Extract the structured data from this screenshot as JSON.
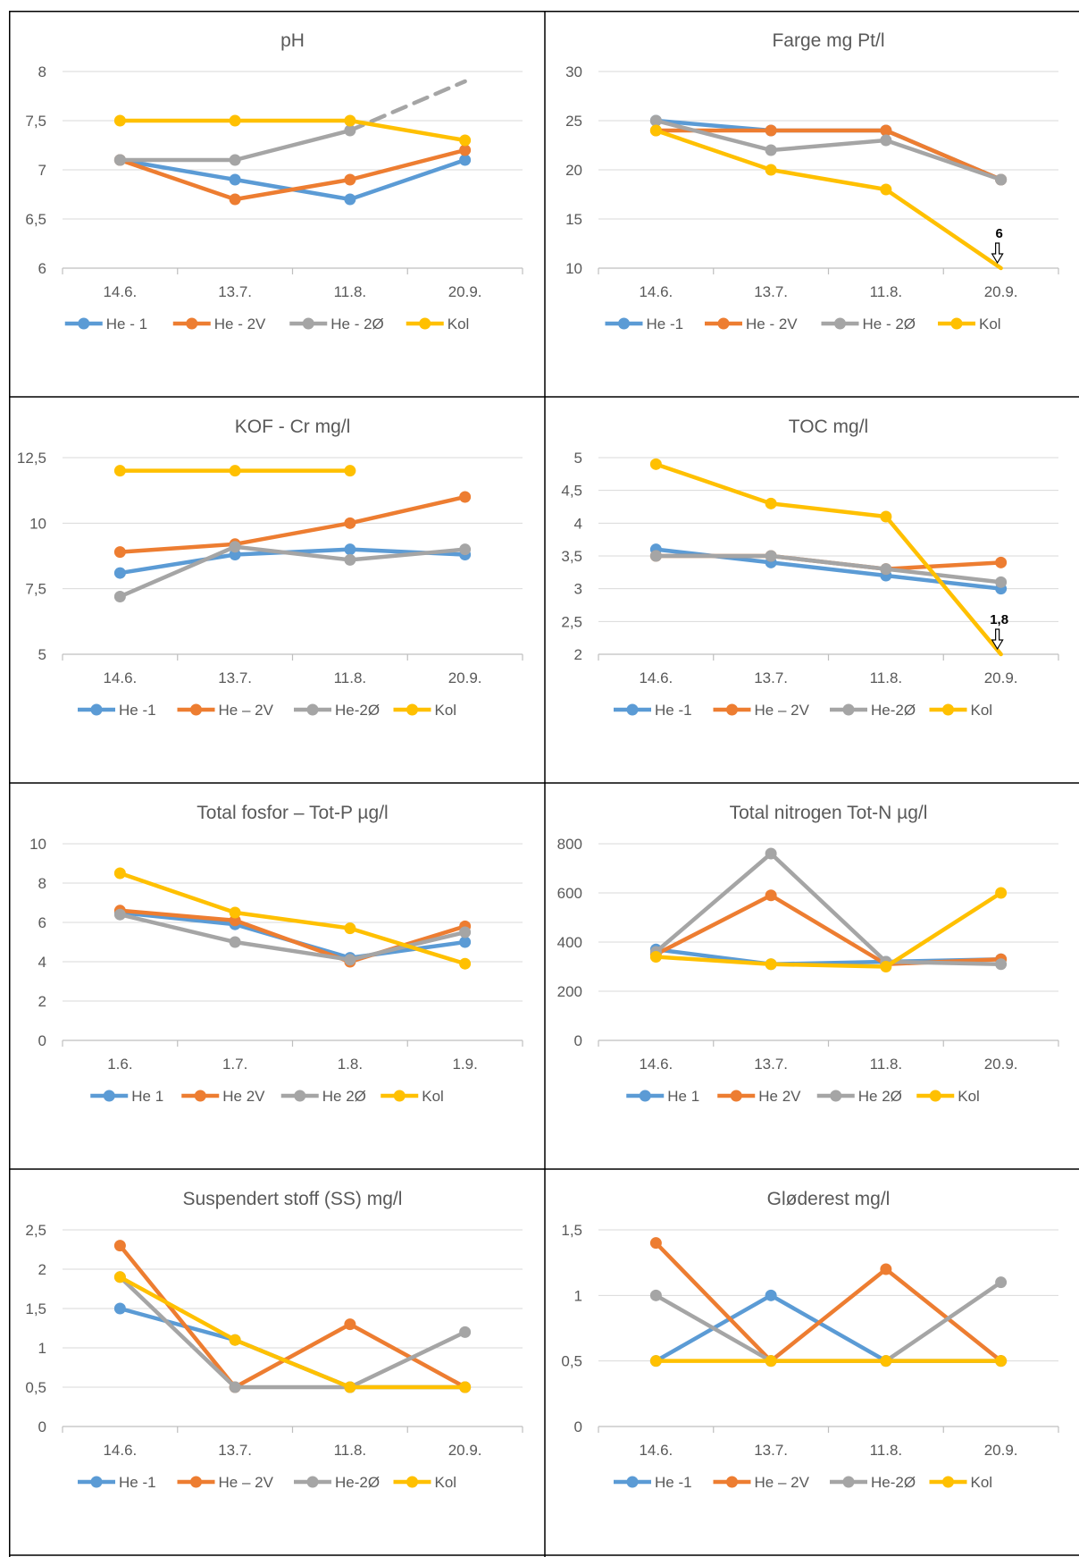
{
  "palette": {
    "He1": "#5B9BD5",
    "He2V": "#ED7D31",
    "He2O": "#A5A5A5",
    "Kol": "#FFC000",
    "axis": "#BFBFBF",
    "grid": "#D9D9D9",
    "text": "#595959"
  },
  "chart_data": [
    {
      "type": "line",
      "title": "pH",
      "categories": [
        "14.6.",
        "13.7.",
        "11.8.",
        "20.9."
      ],
      "ylim": [
        6,
        8
      ],
      "yticks": [
        "6",
        "6,5",
        "7",
        "7,5",
        "8"
      ],
      "grid": true,
      "legend": "bottom",
      "series": [
        {
          "name": "He - 1",
          "color_key": "He1",
          "values": [
            7.1,
            6.9,
            6.7,
            7.1
          ]
        },
        {
          "name": "He - 2V",
          "color_key": "He2V",
          "values": [
            7.1,
            6.7,
            6.9,
            7.2
          ]
        },
        {
          "name": "He - 2Ø",
          "color_key": "He2O",
          "values": [
            7.1,
            7.1,
            7.4,
            7.9
          ],
          "dashed_last_segment": true
        },
        {
          "name": "Kol",
          "color_key": "Kol",
          "values": [
            7.5,
            7.5,
            7.5,
            7.3
          ]
        }
      ]
    },
    {
      "type": "line",
      "title": "Farge mg Pt/l",
      "categories": [
        "14.6.",
        "13.7.",
        "11.8.",
        "20.9."
      ],
      "ylim": [
        10,
        30
      ],
      "yticks": [
        "10",
        "15",
        "20",
        "25",
        "30"
      ],
      "grid": true,
      "legend": "bottom",
      "series": [
        {
          "name": "He -1",
          "color_key": "He1",
          "values": [
            25,
            24,
            24,
            19
          ]
        },
        {
          "name": "He - 2V",
          "color_key": "He2V",
          "values": [
            24,
            24,
            24,
            19
          ]
        },
        {
          "name": "He - 2Ø",
          "color_key": "He2O",
          "values": [
            25,
            22,
            23,
            19
          ]
        },
        {
          "name": "Kol",
          "color_key": "Kol",
          "values": [
            24,
            20,
            18,
            6
          ],
          "last_point_offscale": true
        }
      ],
      "annotations": [
        {
          "text": "6",
          "category_index": 3
        }
      ]
    },
    {
      "type": "line",
      "title": "KOF - Cr mg/l",
      "categories": [
        "14.6.",
        "13.7.",
        "11.8.",
        "20.9."
      ],
      "ylim": [
        5,
        12.5
      ],
      "yticks": [
        "5",
        "7,5",
        "10",
        "12,5"
      ],
      "grid": true,
      "legend": "bottom",
      "series": [
        {
          "name": "He -1",
          "color_key": "He1",
          "values": [
            8.1,
            8.8,
            9.0,
            8.8
          ]
        },
        {
          "name": "He – 2V",
          "color_key": "He2V",
          "values": [
            8.9,
            9.2,
            10.0,
            11.0
          ]
        },
        {
          "name": "He-2Ø",
          "color_key": "He2O",
          "values": [
            7.2,
            9.1,
            8.6,
            9.0
          ]
        },
        {
          "name": "Kol",
          "color_key": "Kol",
          "values": [
            12.0,
            12.0,
            12.0,
            null
          ]
        }
      ]
    },
    {
      "type": "line",
      "title": "TOC mg/l",
      "categories": [
        "14.6.",
        "13.7.",
        "11.8.",
        "20.9."
      ],
      "ylim": [
        2,
        5
      ],
      "yticks": [
        "2",
        "2,5",
        "3",
        "3,5",
        "4",
        "4,5",
        "5"
      ],
      "grid": true,
      "legend": "bottom",
      "series": [
        {
          "name": "He -1",
          "color_key": "He1",
          "values": [
            3.6,
            3.4,
            3.2,
            3.0
          ]
        },
        {
          "name": "He – 2V",
          "color_key": "He2V",
          "values": [
            3.5,
            3.5,
            3.3,
            3.4
          ]
        },
        {
          "name": "He-2Ø",
          "color_key": "He2O",
          "values": [
            3.5,
            3.5,
            3.3,
            3.1
          ]
        },
        {
          "name": "Kol",
          "color_key": "Kol",
          "values": [
            4.9,
            4.3,
            4.1,
            1.8
          ],
          "last_point_offscale": true
        }
      ],
      "annotations": [
        {
          "text": "1,8",
          "category_index": 3
        }
      ]
    },
    {
      "type": "line",
      "title": "Total fosfor – Tot-P µg/l",
      "categories": [
        "1.6.",
        "1.7.",
        "1.8.",
        "1.9."
      ],
      "ylim": [
        0,
        10
      ],
      "yticks": [
        "0",
        "2",
        "4",
        "6",
        "8",
        "10"
      ],
      "grid": true,
      "legend": "bottom",
      "series": [
        {
          "name": "He 1",
          "color_key": "He1",
          "values": [
            6.5,
            5.9,
            4.2,
            5.0
          ]
        },
        {
          "name": "He 2V",
          "color_key": "He2V",
          "values": [
            6.6,
            6.1,
            4.0,
            5.8
          ]
        },
        {
          "name": "He 2Ø",
          "color_key": "He2O",
          "values": [
            6.4,
            5.0,
            4.1,
            5.5
          ]
        },
        {
          "name": "Kol",
          "color_key": "Kol",
          "values": [
            8.5,
            6.5,
            5.7,
            3.9
          ]
        }
      ]
    },
    {
      "type": "line",
      "title": "Total nitrogen Tot-N µg/l",
      "categories": [
        "14.6.",
        "13.7.",
        "11.8.",
        "20.9."
      ],
      "ylim": [
        0,
        800
      ],
      "yticks": [
        "0",
        "200",
        "400",
        "600",
        "800"
      ],
      "grid": true,
      "legend": "bottom",
      "series": [
        {
          "name": "He 1",
          "color_key": "He1",
          "values": [
            370,
            310,
            320,
            330
          ]
        },
        {
          "name": "He 2V",
          "color_key": "He2V",
          "values": [
            350,
            590,
            310,
            330
          ]
        },
        {
          "name": "He 2Ø",
          "color_key": "He2O",
          "values": [
            360,
            760,
            320,
            310
          ]
        },
        {
          "name": "Kol",
          "color_key": "Kol",
          "values": [
            340,
            310,
            300,
            600
          ]
        }
      ]
    },
    {
      "type": "line",
      "title": "Suspendert stoff (SS) mg/l",
      "categories": [
        "14.6.",
        "13.7.",
        "11.8.",
        "20.9."
      ],
      "ylim": [
        0,
        2.5
      ],
      "yticks": [
        "0",
        "0,5",
        "1",
        "1,5",
        "2",
        "2,5"
      ],
      "grid": true,
      "legend": "bottom",
      "series": [
        {
          "name": "He -1",
          "color_key": "He1",
          "values": [
            1.5,
            1.1,
            0.5,
            0.5
          ]
        },
        {
          "name": "He – 2V",
          "color_key": "He2V",
          "values": [
            2.3,
            0.5,
            1.3,
            0.5
          ]
        },
        {
          "name": "He-2Ø",
          "color_key": "He2O",
          "values": [
            1.9,
            0.5,
            0.5,
            1.2
          ]
        },
        {
          "name": "Kol",
          "color_key": "Kol",
          "values": [
            1.9,
            1.1,
            0.5,
            0.5
          ]
        }
      ]
    },
    {
      "type": "line",
      "title": "Gløderest mg/l",
      "categories": [
        "14.6.",
        "13.7.",
        "11.8.",
        "20.9."
      ],
      "ylim": [
        0,
        1.5
      ],
      "yticks": [
        "0",
        "0,5",
        "1",
        "1,5"
      ],
      "grid": true,
      "legend": "bottom",
      "series": [
        {
          "name": "He -1",
          "color_key": "He1",
          "values": [
            0.5,
            1.0,
            0.5,
            0.5
          ]
        },
        {
          "name": "He – 2V",
          "color_key": "He2V",
          "values": [
            1.4,
            0.5,
            1.2,
            0.5
          ]
        },
        {
          "name": "He-2Ø",
          "color_key": "He2O",
          "values": [
            1.0,
            0.5,
            0.5,
            1.1
          ]
        },
        {
          "name": "Kol",
          "color_key": "Kol",
          "values": [
            0.5,
            0.5,
            0.5,
            0.5
          ]
        }
      ]
    }
  ]
}
